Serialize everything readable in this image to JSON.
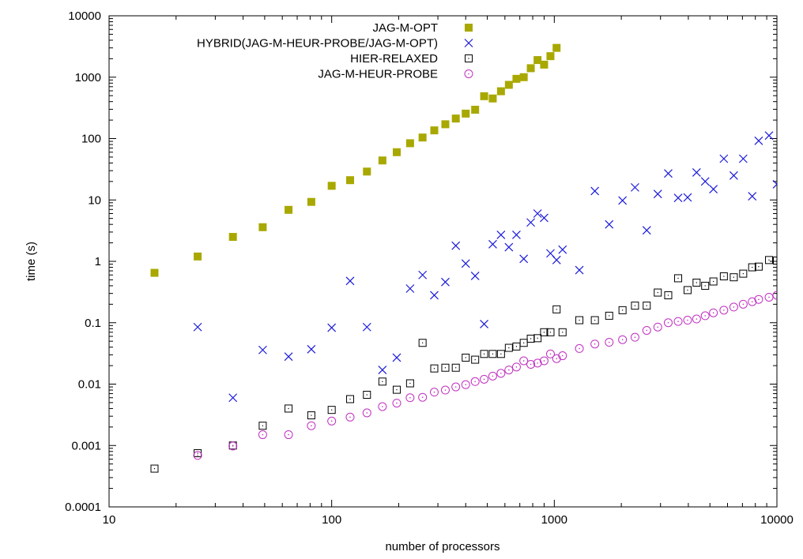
{
  "chart_data": {
    "type": "scatter",
    "title": "",
    "xlabel": "number of processors",
    "ylabel": "time (s)",
    "xscale": "log",
    "yscale": "log",
    "xlim": [
      10,
      10000
    ],
    "ylim": [
      0.0001,
      10000
    ],
    "x_ticks": [
      {
        "value": 10,
        "label": "10"
      },
      {
        "value": 100,
        "label": "100"
      },
      {
        "value": 1000,
        "label": "1000"
      },
      {
        "value": 10000,
        "label": "10000"
      }
    ],
    "y_ticks": [
      {
        "value": 0.0001,
        "label": "0.0001"
      },
      {
        "value": 0.001,
        "label": "0.001"
      },
      {
        "value": 0.01,
        "label": "0.01"
      },
      {
        "value": 0.1,
        "label": "0.1"
      },
      {
        "value": 1,
        "label": "1"
      },
      {
        "value": 10,
        "label": "10"
      },
      {
        "value": 100,
        "label": "100"
      },
      {
        "value": 1000,
        "label": "1000"
      },
      {
        "value": 10000,
        "label": "10000"
      }
    ],
    "grid": false,
    "legend_position": "top-right",
    "series": [
      {
        "name": "JAG-M-OPT",
        "marker": "filled-square",
        "color": "#a8a800",
        "points": [
          [
            16,
            0.65
          ],
          [
            25,
            1.2
          ],
          [
            36,
            2.5
          ],
          [
            49,
            3.6
          ],
          [
            64,
            6.9
          ],
          [
            81,
            9.3
          ],
          [
            100,
            17
          ],
          [
            121,
            21
          ],
          [
            144,
            29
          ],
          [
            169,
            44
          ],
          [
            196,
            60
          ],
          [
            225,
            84
          ],
          [
            256,
            104
          ],
          [
            289,
            136
          ],
          [
            324,
            171
          ],
          [
            361,
            212
          ],
          [
            400,
            255
          ],
          [
            441,
            295
          ],
          [
            484,
            490
          ],
          [
            529,
            450
          ],
          [
            576,
            590
          ],
          [
            625,
            750
          ],
          [
            676,
            940
          ],
          [
            729,
            1000
          ],
          [
            784,
            1400
          ],
          [
            841,
            1900
          ],
          [
            900,
            1600
          ],
          [
            961,
            2200
          ],
          [
            1024,
            3000
          ]
        ]
      },
      {
        "name": "HYBRID(JAG-M-HEUR-PROBE/JAG-M-OPT)",
        "marker": "x",
        "color": "#1a1ad9",
        "points": [
          [
            25,
            0.085
          ],
          [
            36,
            0.006
          ],
          [
            49,
            0.036
          ],
          [
            64,
            0.028
          ],
          [
            81,
            0.037
          ],
          [
            100,
            0.083
          ],
          [
            121,
            0.48
          ],
          [
            144,
            0.085
          ],
          [
            169,
            0.017
          ],
          [
            196,
            0.027
          ],
          [
            225,
            0.36
          ],
          [
            256,
            0.6
          ],
          [
            289,
            0.28
          ],
          [
            324,
            0.46
          ],
          [
            361,
            1.8
          ],
          [
            400,
            0.92
          ],
          [
            441,
            0.58
          ],
          [
            484,
            0.095
          ],
          [
            529,
            1.9
          ],
          [
            576,
            2.7
          ],
          [
            625,
            1.7
          ],
          [
            676,
            2.7
          ],
          [
            729,
            1.1
          ],
          [
            784,
            4.3
          ],
          [
            841,
            6.0
          ],
          [
            900,
            5.1
          ],
          [
            961,
            1.35
          ],
          [
            1024,
            1.05
          ],
          [
            1089,
            1.55
          ],
          [
            1296,
            0.72
          ],
          [
            1521,
            14
          ],
          [
            1764,
            4.0
          ],
          [
            2025,
            9.8
          ],
          [
            2304,
            16
          ],
          [
            2601,
            3.2
          ],
          [
            2916,
            12.5
          ],
          [
            3249,
            27
          ],
          [
            3600,
            10.8
          ],
          [
            3969,
            11
          ],
          [
            4356,
            28
          ],
          [
            4761,
            20
          ],
          [
            5184,
            15
          ],
          [
            5776,
            47
          ],
          [
            6400,
            25
          ],
          [
            7056,
            47
          ],
          [
            7744,
            11.5
          ],
          [
            8281,
            92
          ],
          [
            9216,
            112
          ],
          [
            10000,
            18
          ]
        ]
      },
      {
        "name": "HIER-RELAXED",
        "marker": "dotted-square",
        "color": "#000000",
        "points": [
          [
            16,
            0.00042
          ],
          [
            25,
            0.00075
          ],
          [
            36,
            0.001
          ],
          [
            49,
            0.0021
          ],
          [
            64,
            0.004
          ],
          [
            81,
            0.0031
          ],
          [
            100,
            0.0038
          ],
          [
            121,
            0.0057
          ],
          [
            144,
            0.0067
          ],
          [
            169,
            0.011
          ],
          [
            196,
            0.0081
          ],
          [
            225,
            0.0103
          ],
          [
            256,
            0.047
          ],
          [
            289,
            0.018
          ],
          [
            324,
            0.0185
          ],
          [
            361,
            0.0185
          ],
          [
            400,
            0.027
          ],
          [
            441,
            0.025
          ],
          [
            484,
            0.031
          ],
          [
            529,
            0.031
          ],
          [
            576,
            0.031
          ],
          [
            625,
            0.039
          ],
          [
            676,
            0.041
          ],
          [
            729,
            0.047
          ],
          [
            784,
            0.055
          ],
          [
            841,
            0.056
          ],
          [
            900,
            0.07
          ],
          [
            961,
            0.07
          ],
          [
            1024,
            0.165
          ],
          [
            1089,
            0.07
          ],
          [
            1296,
            0.11
          ],
          [
            1521,
            0.11
          ],
          [
            1764,
            0.13
          ],
          [
            2025,
            0.16
          ],
          [
            2304,
            0.19
          ],
          [
            2601,
            0.19
          ],
          [
            2916,
            0.31
          ],
          [
            3249,
            0.28
          ],
          [
            3600,
            0.53
          ],
          [
            3969,
            0.34
          ],
          [
            4356,
            0.45
          ],
          [
            4761,
            0.4
          ],
          [
            5184,
            0.47
          ],
          [
            5776,
            0.57
          ],
          [
            6400,
            0.55
          ],
          [
            7056,
            0.63
          ],
          [
            7744,
            0.8
          ],
          [
            8281,
            0.82
          ],
          [
            9216,
            1.05
          ],
          [
            10000,
            1.03
          ]
        ]
      },
      {
        "name": "JAG-M-HEUR-PROBE",
        "marker": "dotted-circle",
        "color": "#c030c0",
        "points": [
          [
            25,
            0.00069
          ],
          [
            36,
            0.00098
          ],
          [
            49,
            0.0015
          ],
          [
            64,
            0.0015
          ],
          [
            81,
            0.0021
          ],
          [
            100,
            0.0025
          ],
          [
            121,
            0.0029
          ],
          [
            144,
            0.0034
          ],
          [
            169,
            0.0043
          ],
          [
            196,
            0.0049
          ],
          [
            225,
            0.006
          ],
          [
            256,
            0.0061
          ],
          [
            289,
            0.0074
          ],
          [
            324,
            0.008
          ],
          [
            361,
            0.009
          ],
          [
            400,
            0.0098
          ],
          [
            441,
            0.011
          ],
          [
            484,
            0.012
          ],
          [
            529,
            0.0135
          ],
          [
            576,
            0.015
          ],
          [
            625,
            0.017
          ],
          [
            676,
            0.019
          ],
          [
            729,
            0.024
          ],
          [
            784,
            0.021
          ],
          [
            841,
            0.022
          ],
          [
            900,
            0.024
          ],
          [
            961,
            0.031
          ],
          [
            1024,
            0.026
          ],
          [
            1089,
            0.029
          ],
          [
            1296,
            0.038
          ],
          [
            1521,
            0.045
          ],
          [
            1764,
            0.048
          ],
          [
            2025,
            0.053
          ],
          [
            2304,
            0.058
          ],
          [
            2601,
            0.075
          ],
          [
            2916,
            0.085
          ],
          [
            3249,
            0.1
          ],
          [
            3600,
            0.105
          ],
          [
            3969,
            0.11
          ],
          [
            4356,
            0.115
          ],
          [
            4761,
            0.13
          ],
          [
            5184,
            0.145
          ],
          [
            5776,
            0.16
          ],
          [
            6400,
            0.18
          ],
          [
            7056,
            0.2
          ],
          [
            7744,
            0.22
          ],
          [
            8281,
            0.24
          ],
          [
            9216,
            0.26
          ],
          [
            10000,
            0.28
          ]
        ]
      }
    ]
  }
}
